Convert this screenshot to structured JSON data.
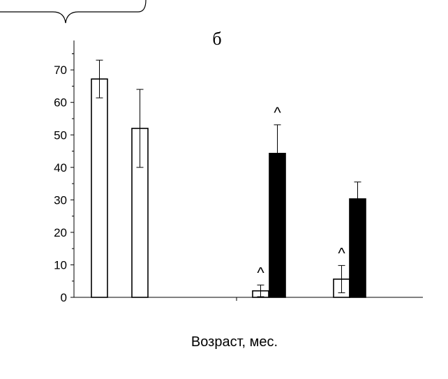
{
  "chart_data": {
    "type": "bar",
    "title": "б",
    "xlabel": "Возраст, мес.",
    "ylabel": "",
    "ylim": [
      0,
      80
    ],
    "yticks": [
      0,
      10,
      20,
      30,
      40,
      50,
      60,
      70
    ],
    "grid": false,
    "groups": [
      {
        "bars": [
          {
            "fill": "#ffffff",
            "value": 67.2,
            "error": 5.8
          },
          {
            "fill": "#ffffff",
            "value": 52.0,
            "error": 12.0
          }
        ]
      },
      {
        "bars": [
          {
            "fill": "#ffffff",
            "value": 2.0,
            "error": 1.8,
            "annotation": "^"
          },
          {
            "fill": "#000000",
            "value": 44.3,
            "error": 8.8,
            "annotation": "^"
          }
        ]
      },
      {
        "bars": [
          {
            "fill": "#ffffff",
            "value": 5.6,
            "error": 4.2,
            "annotation": "^"
          },
          {
            "fill": "#000000",
            "value": 30.3,
            "error": 5.2
          }
        ]
      }
    ]
  }
}
